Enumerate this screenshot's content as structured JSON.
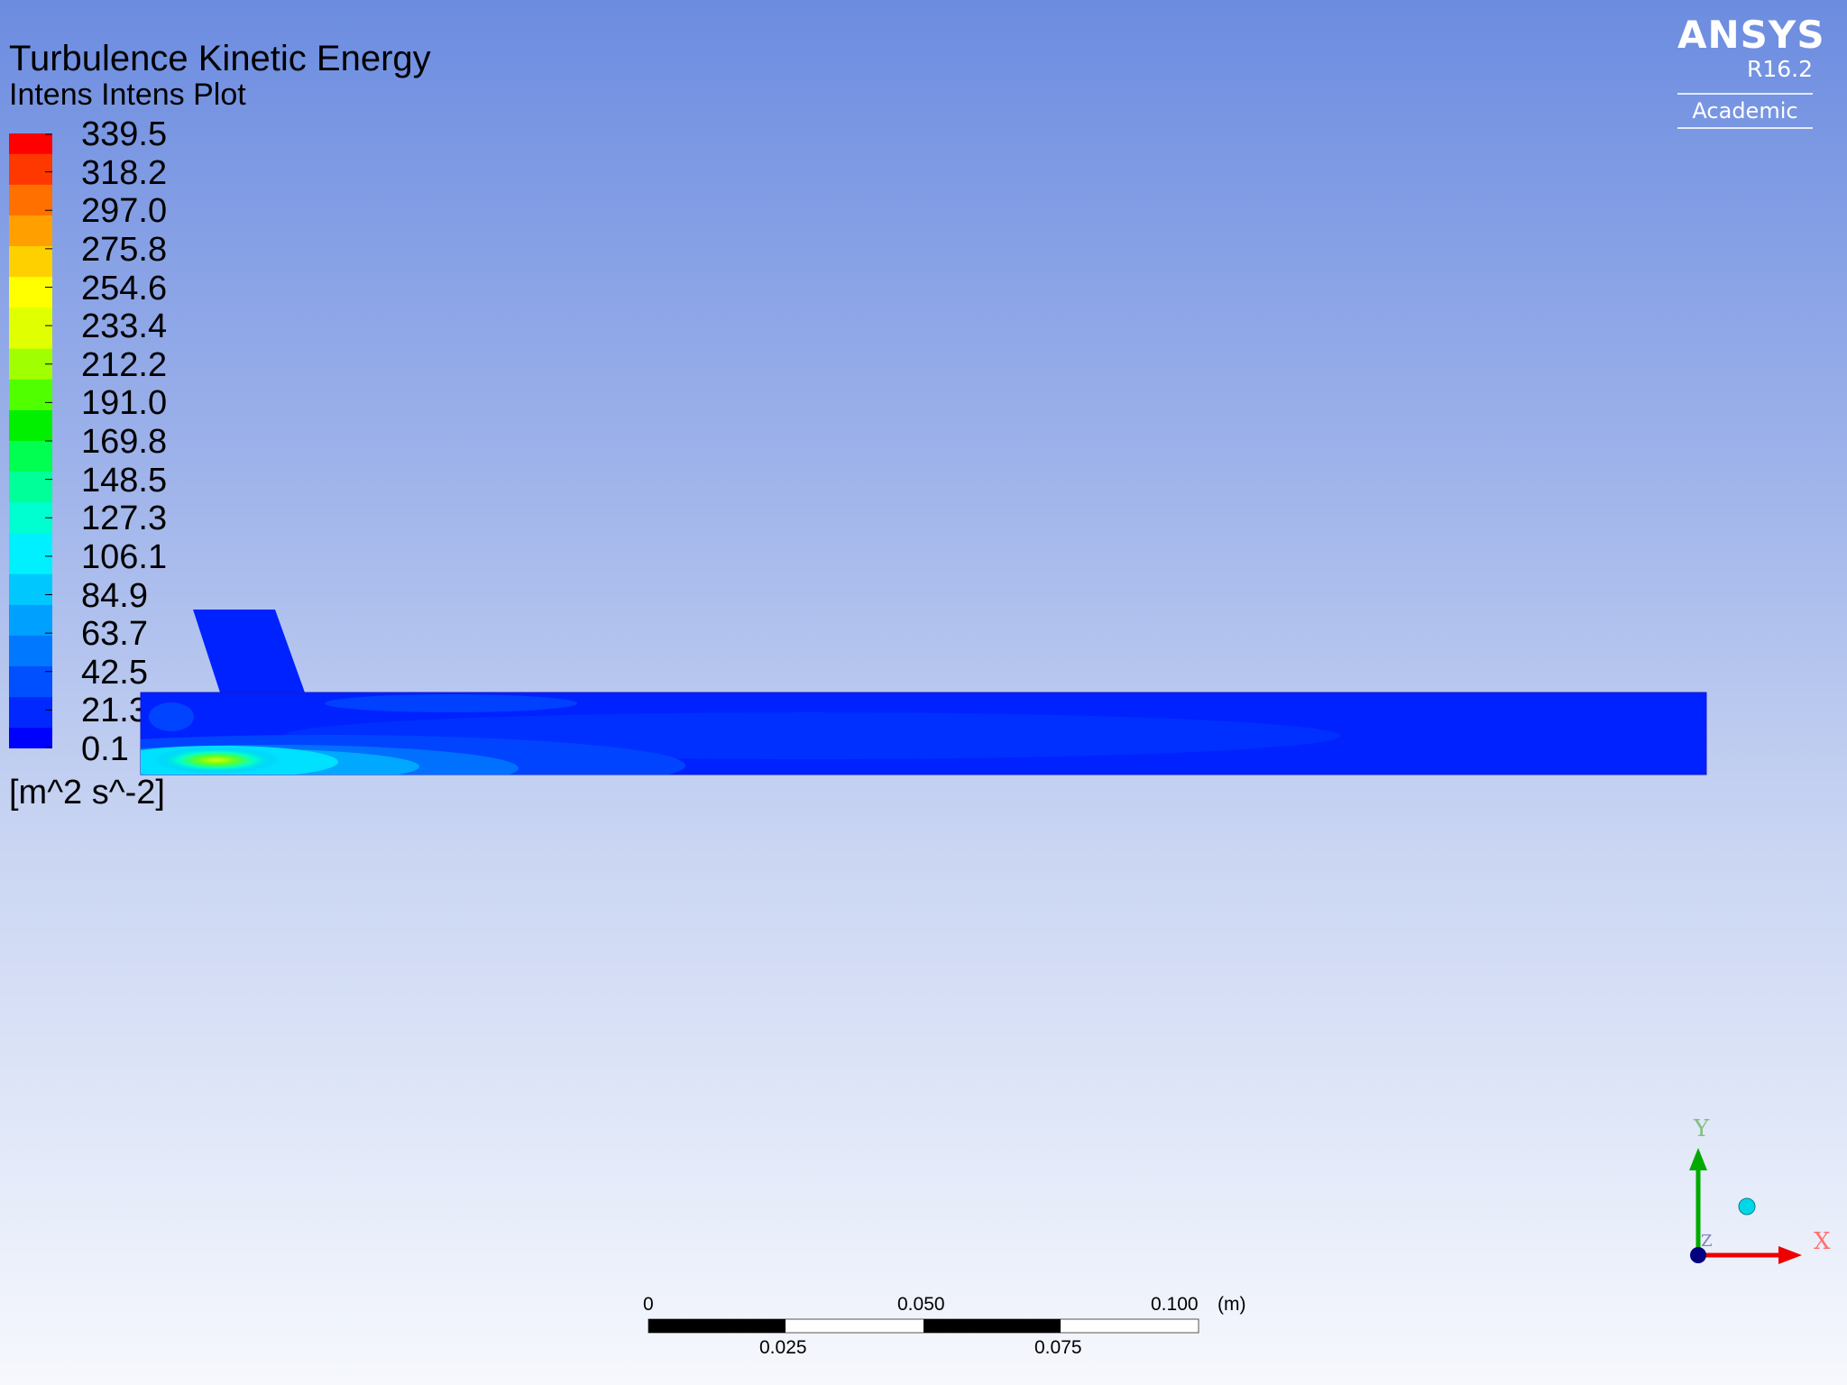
{
  "plot": {
    "title": "Turbulence Kinetic Energy",
    "subtitle": "Intens Intens Plot",
    "units": "[m^2 s^-2]"
  },
  "legend": {
    "tick_labels": [
      "339.5",
      "318.2",
      "297.0",
      "275.8",
      "254.6",
      "233.4",
      "212.2",
      "191.0",
      "169.8",
      "148.5",
      "127.3",
      "106.1",
      "84.9",
      "63.7",
      "42.5",
      "21.3",
      "0.1"
    ],
    "colormap": [
      "#0000ff",
      "#0028ff",
      "#0050ff",
      "#0078ff",
      "#00a0ff",
      "#00c8ff",
      "#00f0ff",
      "#00ffd0",
      "#00ff98",
      "#00ff50",
      "#00f000",
      "#50ff00",
      "#a0ff00",
      "#e0ff00",
      "#ffff00",
      "#ffd000",
      "#ffa000",
      "#ff7000",
      "#ff3800",
      "#ff0000"
    ]
  },
  "logo": {
    "brand": "ANSYS",
    "version": "R16.2",
    "edition": "Academic"
  },
  "scale_bar": {
    "top_labels": [
      "0",
      "0.050",
      "0.100"
    ],
    "bottom_labels": [
      "0.025",
      "0.075"
    ],
    "unit": "(m)"
  },
  "axes": {
    "x_label": "X",
    "y_label": "Y",
    "z_label": "Z"
  },
  "colors": {
    "domain_fill": "#0022ff",
    "x_axis": "#ff0000",
    "y_axis": "#00aa00",
    "z_axis": "#000080"
  }
}
